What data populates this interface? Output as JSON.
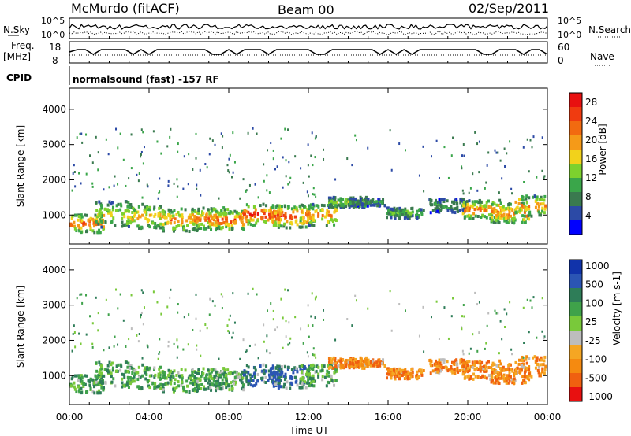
{
  "header": {
    "station": "McMurdo (fitACF)",
    "beam": "Beam 00",
    "date": "02/Sep/2011"
  },
  "noise_panel": {
    "left_label": "N.Sky",
    "left_ticks": [
      "10^5",
      "10^0"
    ],
    "right_ticks": [
      "10^5",
      "10^0"
    ],
    "right_label": "N.Search"
  },
  "freq_panel": {
    "left_label_line1": "Freq.",
    "left_label_line2": "[MHz]",
    "left_ticks": [
      "18",
      "8"
    ],
    "right_ticks": [
      "60",
      "0"
    ],
    "right_label": "Nave"
  },
  "cpid_panel": {
    "label": "CPID",
    "text": "normalsound (fast) -157 RF"
  },
  "time_axis": {
    "ticks": [
      "00:00",
      "04:00",
      "08:00",
      "12:00",
      "16:00",
      "20:00",
      "00:00"
    ],
    "label": "Time UT"
  },
  "colors": {
    "power_scale": [
      "#0000ff",
      "#2c4aa6",
      "#3a7a4f",
      "#3aa64a",
      "#7dd12e",
      "#f2d21b",
      "#f59a18",
      "#f26a10",
      "#f03b10",
      "#e81010"
    ],
    "velocity_scale": [
      "#1133aa",
      "#2b55b4",
      "#2e7d58",
      "#3fa24a",
      "#79c93a",
      "#bdbdbd",
      "#f5a623",
      "#f58a10",
      "#f06010",
      "#e81010"
    ]
  },
  "chart_data": [
    {
      "type": "heatmap",
      "title": "Power",
      "ylabel": "Slant Range [km]",
      "xlabel": "",
      "ylim": [
        180,
        4600
      ],
      "y_ticks": [
        "1000",
        "2000",
        "3000",
        "4000"
      ],
      "colorbar_label": "Power [dB]",
      "colorbar_ticks": [
        "4",
        "8",
        "12",
        "16",
        "20",
        "24",
        "28"
      ],
      "colorbar_range": [
        0,
        30
      ]
    },
    {
      "type": "heatmap",
      "title": "Velocity",
      "ylabel": "Slant Range [km]",
      "xlabel": "Time UT",
      "ylim": [
        180,
        4600
      ],
      "y_ticks": [
        "1000",
        "2000",
        "3000",
        "4000"
      ],
      "colorbar_label": "Velocity [m s-1]",
      "colorbar_ticks": [
        "1000",
        "500",
        "100",
        "25",
        "-25",
        "-100",
        "-500",
        "-1000"
      ]
    }
  ]
}
